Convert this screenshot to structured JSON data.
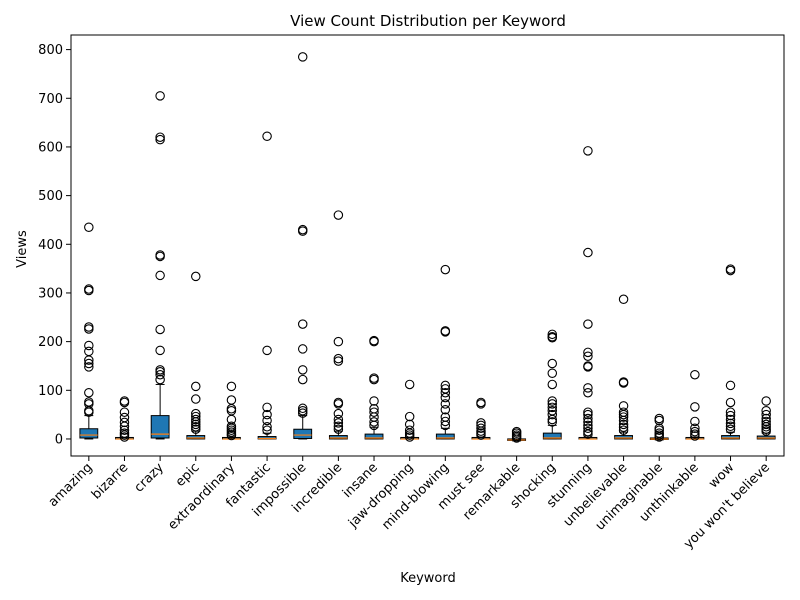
{
  "chart_data": {
    "type": "box",
    "title": "View Count Distribution per Keyword",
    "xlabel": "Keyword",
    "ylabel": "Views",
    "ylim": [
      -35,
      830
    ],
    "yticks": [
      0,
      100,
      200,
      300,
      400,
      500,
      600,
      700,
      800
    ],
    "grid": false,
    "colors": {
      "box_fill": "#1f77b4",
      "median": "#ff7f0e",
      "outline": "#000000"
    },
    "categories": [
      "amazing",
      "bizarre",
      "crazy",
      "epic",
      "extraordinary",
      "fantastic",
      "impossible",
      "incredible",
      "insane",
      "jaw-dropping",
      "mind-blowing",
      "must see",
      "remarkable",
      "shocking",
      "stunning",
      "unbelievable",
      "unimaginable",
      "unthinkable",
      "wow",
      "you won't believe"
    ],
    "series": [
      {
        "category": "amazing",
        "q1": 2,
        "median": 8,
        "q3": 21,
        "whisker_low": 0,
        "whisker_high": 48,
        "outliers": [
          55,
          58,
          72,
          76,
          95,
          148,
          155,
          162,
          180,
          192,
          226,
          230,
          305,
          308,
          435
        ]
      },
      {
        "category": "bizarre",
        "q1": 0,
        "median": 0,
        "q3": 1,
        "whisker_low": 0,
        "whisker_high": 2,
        "outliers": [
          4,
          8,
          12,
          18,
          26,
          34,
          44,
          55,
          75,
          78
        ]
      },
      {
        "category": "crazy",
        "q1": 2,
        "median": 10,
        "q3": 48,
        "whisker_low": 0,
        "whisker_high": 112,
        "outliers": [
          122,
          132,
          138,
          142,
          182,
          225,
          336,
          375,
          378,
          615,
          620,
          705
        ]
      },
      {
        "category": "epic",
        "q1": 0,
        "median": 2,
        "q3": 7,
        "whisker_low": 0,
        "whisker_high": 16,
        "outliers": [
          20,
          25,
          30,
          35,
          40,
          46,
          52,
          82,
          108,
          334
        ]
      },
      {
        "category": "extraordinary",
        "q1": 0,
        "median": 0,
        "q3": 2,
        "whisker_low": 0,
        "whisker_high": 4,
        "outliers": [
          7,
          10,
          14,
          18,
          22,
          26,
          40,
          58,
          62,
          80,
          108
        ]
      },
      {
        "category": "fantastic",
        "q1": 0,
        "median": 1,
        "q3": 5,
        "whisker_low": 0,
        "whisker_high": 12,
        "outliers": [
          18,
          25,
          38,
          50,
          65,
          182,
          622
        ]
      },
      {
        "category": "impossible",
        "q1": 1,
        "median": 8,
        "q3": 20,
        "whisker_low": 0,
        "whisker_high": 48,
        "outliers": [
          53,
          58,
          63,
          122,
          142,
          185,
          236,
          427,
          430,
          785
        ]
      },
      {
        "category": "incredible",
        "q1": 0,
        "median": 2,
        "q3": 7,
        "whisker_low": 0,
        "whisker_high": 16,
        "outliers": [
          20,
          26,
          33,
          40,
          52,
          72,
          75,
          160,
          165,
          200,
          460
        ]
      },
      {
        "category": "insane",
        "q1": 0,
        "median": 2,
        "q3": 10,
        "whisker_low": 0,
        "whisker_high": 24,
        "outliers": [
          28,
          35,
          45,
          55,
          62,
          78,
          122,
          125,
          200,
          202
        ]
      },
      {
        "category": "jaw-dropping",
        "q1": 0,
        "median": 0,
        "q3": 1,
        "whisker_low": 0,
        "whisker_high": 2,
        "outliers": [
          4,
          8,
          12,
          18,
          30,
          46,
          112
        ]
      },
      {
        "category": "mind-blowing",
        "q1": 0,
        "median": 2,
        "q3": 10,
        "whisker_low": 0,
        "whisker_high": 22,
        "outliers": [
          28,
          36,
          45,
          60,
          72,
          85,
          95,
          103,
          110,
          220,
          222,
          348
        ]
      },
      {
        "category": "must see",
        "q1": 0,
        "median": 0,
        "q3": 2,
        "whisker_low": 0,
        "whisker_high": 4,
        "outliers": [
          8,
          12,
          16,
          22,
          28,
          33,
          72,
          75
        ]
      },
      {
        "category": "remarkable",
        "q1": -3,
        "median": -2,
        "q3": -1,
        "whisker_low": -4,
        "whisker_high": 0,
        "outliers": [
          2,
          5,
          8,
          12,
          15
        ]
      },
      {
        "category": "shocking",
        "q1": 0,
        "median": 2,
        "q3": 12,
        "whisker_low": 0,
        "whisker_high": 28,
        "outliers": [
          35,
          40,
          50,
          58,
          65,
          72,
          78,
          112,
          135,
          155,
          208,
          210,
          215
        ]
      },
      {
        "category": "stunning",
        "q1": 0,
        "median": 0,
        "q3": 3,
        "whisker_low": 0,
        "whisker_high": 6,
        "outliers": [
          10,
          15,
          22,
          28,
          35,
          42,
          50,
          55,
          95,
          105,
          148,
          150,
          170,
          178,
          236,
          383,
          592
        ]
      },
      {
        "category": "unbelievable",
        "q1": 0,
        "median": 2,
        "q3": 7,
        "whisker_low": 0,
        "whisker_high": 14,
        "outliers": [
          18,
          24,
          30,
          38,
          45,
          50,
          55,
          68,
          115,
          117,
          287
        ]
      },
      {
        "category": "unimaginable",
        "q1": -1,
        "median": 0,
        "q3": 1,
        "whisker_low": -2,
        "whisker_high": 2,
        "outliers": [
          4,
          8,
          12,
          18,
          22,
          38,
          42
        ]
      },
      {
        "category": "unthinkable",
        "q1": 0,
        "median": 0,
        "q3": 2,
        "whisker_low": 0,
        "whisker_high": 4,
        "outliers": [
          6,
          10,
          15,
          22,
          36,
          66,
          132
        ]
      },
      {
        "category": "wow",
        "q1": 0,
        "median": 2,
        "q3": 7,
        "whisker_low": 0,
        "whisker_high": 14,
        "outliers": [
          20,
          26,
          32,
          40,
          48,
          55,
          75,
          110,
          346,
          349
        ]
      },
      {
        "category": "you won't believe",
        "q1": 0,
        "median": 2,
        "q3": 6,
        "whisker_low": 0,
        "whisker_high": 12,
        "outliers": [
          16,
          20,
          25,
          30,
          36,
          42,
          50,
          58,
          78
        ]
      }
    ]
  }
}
